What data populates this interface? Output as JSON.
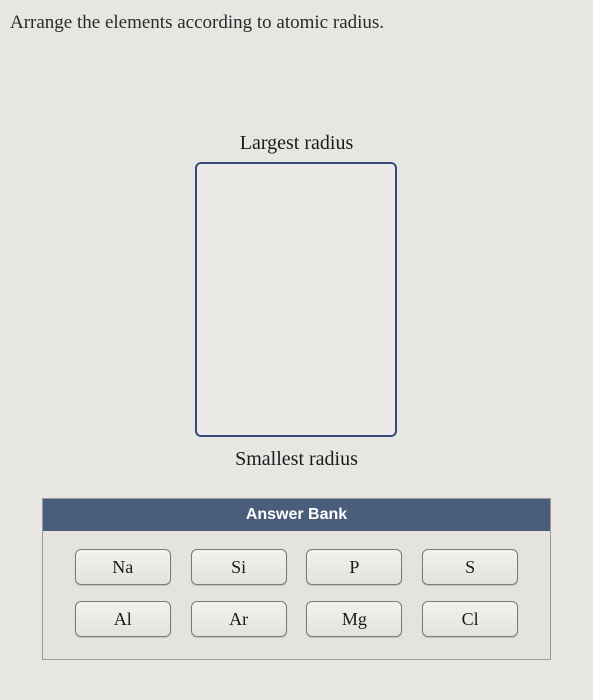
{
  "question": "Arrange the elements according to atomic radius.",
  "labels": {
    "top": "Largest radius",
    "bottom": "Smallest radius"
  },
  "answerBank": {
    "header": "Answer Bank",
    "rows": [
      {
        "items": [
          "Na",
          "Si",
          "P",
          "S"
        ]
      },
      {
        "items": [
          "Al",
          "Ar",
          "Mg",
          "Cl"
        ]
      }
    ]
  },
  "colors": {
    "background": "#e8e6e3",
    "dropzone_border": "#3a4a7a",
    "bank_header_bg": "#4a5d7a",
    "bank_header_text": "#ffffff",
    "tile_border": "#7a7a7a"
  }
}
